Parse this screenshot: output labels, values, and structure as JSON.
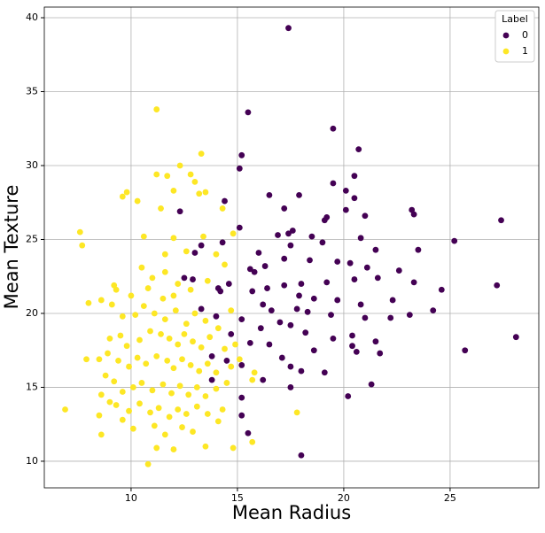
{
  "chart_data": {
    "type": "scatter",
    "x_label": "Mean Radius",
    "y_label": "Mean Texture",
    "legend_title": "Label",
    "legend": "upper right",
    "grid": true,
    "xlim": [
      5.92,
      29.17
    ],
    "ylim": [
      8.2,
      40.72
    ],
    "xticks": [
      10,
      15,
      20,
      25
    ],
    "yticks": [
      10,
      15,
      20,
      25,
      30,
      35,
      40
    ],
    "series": [
      {
        "name": "0",
        "color": "#440154",
        "x": [
          17.4,
          15.5,
          19.5,
          20.7,
          15.2,
          15.1,
          20.5,
          19.5,
          17.9,
          16.5,
          20.1,
          20.5,
          17.2,
          20.1,
          23.2,
          23.3,
          21.0,
          19.2,
          19.1,
          12.3,
          14.4,
          27.4,
          17.4,
          17.6,
          15.1,
          16.9,
          14.3,
          16.0,
          17.5,
          18.5,
          19.0,
          20.8,
          21.5,
          25.2,
          23.5,
          13.0,
          13.3,
          15.6,
          16.3,
          15.8,
          17.2,
          18.4,
          19.7,
          20.3,
          21.1,
          22.6,
          18.0,
          17.2,
          19.2,
          20.5,
          21.6,
          23.3,
          24.6,
          27.2,
          14.1,
          14.6,
          15.7,
          16.4,
          17.9,
          18.6,
          19.7,
          20.8,
          22.3,
          16.2,
          16.6,
          17.8,
          18.3,
          19.4,
          21.0,
          22.2,
          23.1,
          24.2,
          13.3,
          14.0,
          15.2,
          16.1,
          17.0,
          17.5,
          18.2,
          19.5,
          20.4,
          21.5,
          28.1,
          14.7,
          15.6,
          16.5,
          18.6,
          20.4,
          20.6,
          21.7,
          25.7,
          13.8,
          14.5,
          17.1,
          17.5,
          19.1,
          18.0,
          15.2,
          16.2,
          17.5,
          21.3,
          20.2,
          15.2,
          15.5,
          18.0,
          15.2,
          13.8,
          14.2,
          12.5,
          12.9
        ],
        "y": [
          39.3,
          33.6,
          32.5,
          31.1,
          30.7,
          29.8,
          29.3,
          28.8,
          28.0,
          28.0,
          28.3,
          27.8,
          27.1,
          27.0,
          27.0,
          26.7,
          26.6,
          26.5,
          26.3,
          26.9,
          27.6,
          26.3,
          25.4,
          25.6,
          25.8,
          25.3,
          24.8,
          24.1,
          24.6,
          25.2,
          24.8,
          25.1,
          24.3,
          24.9,
          24.3,
          24.1,
          24.6,
          23.0,
          23.2,
          22.8,
          23.7,
          23.6,
          23.5,
          23.4,
          23.1,
          22.9,
          22.0,
          21.9,
          22.1,
          22.3,
          22.4,
          22.1,
          21.6,
          21.9,
          21.7,
          22.0,
          21.5,
          21.7,
          21.2,
          21.0,
          20.9,
          20.6,
          20.9,
          20.6,
          20.2,
          20.3,
          20.1,
          19.9,
          19.7,
          19.7,
          19.9,
          20.2,
          20.3,
          19.8,
          19.6,
          19.0,
          19.4,
          19.2,
          18.7,
          18.3,
          18.5,
          18.1,
          18.4,
          18.6,
          18.0,
          17.9,
          17.5,
          17.8,
          17.4,
          17.3,
          17.5,
          17.1,
          16.8,
          17.0,
          16.4,
          16.0,
          16.1,
          16.5,
          15.5,
          15.0,
          15.2,
          14.4,
          14.3,
          11.9,
          10.4,
          13.1,
          15.5,
          21.5,
          22.4,
          22.3
        ]
      },
      {
        "name": "1",
        "color": "#fde725",
        "x": [
          11.2,
          12.3,
          13.3,
          11.2,
          11.7,
          12.8,
          13.0,
          9.6,
          9.8,
          10.3,
          12.0,
          13.2,
          13.5,
          14.3,
          11.4,
          7.6,
          7.7,
          10.6,
          11.6,
          12.0,
          12.6,
          13.4,
          14.0,
          14.8,
          9.2,
          9.3,
          10.0,
          10.5,
          11.0,
          11.6,
          12.2,
          12.8,
          13.6,
          14.4,
          8.0,
          8.6,
          9.1,
          9.6,
          10.2,
          10.6,
          11.1,
          11.6,
          12.1,
          12.6,
          13.0,
          13.5,
          14.1,
          14.7,
          9.0,
          9.5,
          9.8,
          10.4,
          10.9,
          11.4,
          11.8,
          12.2,
          12.5,
          12.9,
          13.3,
          13.7,
          14.4,
          8.5,
          8.9,
          9.4,
          9.9,
          10.3,
          10.7,
          11.2,
          11.7,
          12.0,
          12.4,
          12.8,
          13.2,
          13.6,
          14.0,
          14.7,
          15.8,
          7.9,
          8.8,
          9.2,
          9.6,
          10.1,
          10.5,
          11.0,
          11.5,
          11.9,
          12.3,
          12.7,
          13.1,
          13.5,
          14.0,
          14.5,
          15.7,
          8.6,
          9.0,
          9.3,
          9.9,
          10.4,
          10.9,
          11.3,
          11.8,
          12.2,
          12.6,
          13.1,
          13.6,
          14.3,
          6.9,
          8.5,
          9.6,
          10.1,
          11.1,
          11.6,
          12.4,
          12.9,
          14.1,
          17.8,
          8.6,
          10.8,
          11.2,
          12.0,
          13.5,
          14.8,
          15.7,
          15.1,
          14.9,
          12.0,
          11.5,
          10.8
        ],
        "y": [
          33.8,
          30.0,
          30.8,
          29.4,
          29.3,
          29.4,
          28.9,
          27.9,
          28.2,
          27.6,
          28.3,
          28.1,
          28.2,
          27.1,
          27.1,
          25.5,
          24.6,
          25.2,
          24.0,
          25.1,
          24.2,
          25.2,
          24.0,
          25.4,
          21.9,
          21.6,
          21.2,
          23.1,
          22.4,
          22.8,
          22.0,
          21.6,
          22.2,
          23.3,
          20.7,
          20.9,
          20.6,
          19.8,
          19.9,
          20.5,
          20.0,
          19.6,
          20.2,
          19.3,
          20.0,
          19.5,
          19.0,
          20.2,
          18.3,
          18.5,
          17.8,
          18.2,
          18.8,
          18.6,
          18.3,
          17.9,
          18.6,
          18.1,
          17.7,
          18.4,
          17.6,
          16.9,
          17.3,
          16.8,
          16.4,
          17.0,
          16.6,
          17.1,
          16.8,
          16.3,
          16.9,
          16.5,
          16.1,
          16.6,
          16.0,
          16.4,
          16.0,
          16.9,
          15.8,
          15.4,
          14.7,
          15.0,
          15.3,
          14.8,
          15.2,
          14.6,
          15.1,
          14.5,
          15.0,
          14.4,
          14.9,
          15.3,
          15.5,
          14.5,
          14.0,
          13.8,
          13.4,
          13.9,
          13.3,
          13.6,
          13.0,
          13.5,
          13.2,
          13.7,
          13.2,
          13.5,
          13.5,
          13.1,
          12.8,
          12.2,
          12.4,
          11.8,
          12.3,
          12.0,
          12.7,
          13.3,
          11.8,
          9.8,
          10.9,
          10.8,
          11.0,
          10.9,
          11.3,
          16.9,
          17.9,
          21.2,
          21.0,
          21.7
        ]
      }
    ]
  }
}
